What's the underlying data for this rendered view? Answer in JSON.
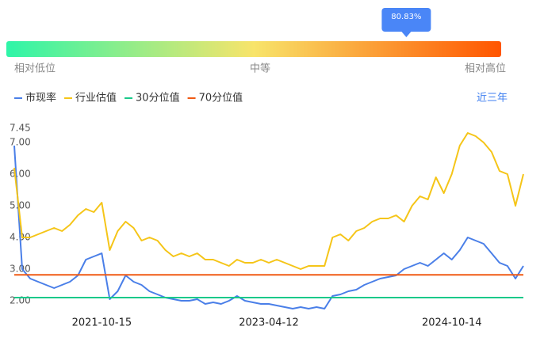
{
  "gauge": {
    "value": 80.83,
    "value_label": "80.83%",
    "low_label": "相对低位",
    "mid_label": "中等",
    "high_label": "相对高位"
  },
  "range_option": "近三年",
  "chart_data": {
    "type": "line",
    "categories": [
      null,
      null,
      null,
      null,
      null,
      null,
      null,
      null,
      null,
      null,
      null,
      "2021-10-15",
      null,
      null,
      null,
      null,
      null,
      null,
      null,
      null,
      null,
      null,
      null,
      null,
      null,
      null,
      null,
      null,
      null,
      null,
      null,
      null,
      "2023-04-12",
      null,
      null,
      null,
      null,
      null,
      null,
      null,
      null,
      null,
      null,
      null,
      null,
      null,
      null,
      null,
      null,
      null,
      null,
      null,
      null,
      null,
      null,
      "2024-10-14",
      null,
      null,
      null,
      null,
      null,
      null,
      null,
      null,
      null
    ],
    "series": [
      {
        "name": "市现率",
        "color": "#4a7fe8",
        "values": [
          6.9,
          3.0,
          2.7,
          2.6,
          2.5,
          2.4,
          2.5,
          2.6,
          2.8,
          3.3,
          3.4,
          3.5,
          2.05,
          2.3,
          2.8,
          2.6,
          2.5,
          2.3,
          2.2,
          2.1,
          2.05,
          2.0,
          2.0,
          2.05,
          1.9,
          1.95,
          1.9,
          2.0,
          2.15,
          2.0,
          1.95,
          1.9,
          1.9,
          1.85,
          1.8,
          1.75,
          1.8,
          1.75,
          1.8,
          1.75,
          2.15,
          2.2,
          2.3,
          2.35,
          2.5,
          2.6,
          2.7,
          2.75,
          2.8,
          3.0,
          3.1,
          3.2,
          3.1,
          3.3,
          3.5,
          3.3,
          3.6,
          4.0,
          3.9,
          3.8,
          3.5,
          3.2,
          3.1,
          2.7,
          3.1
        ]
      },
      {
        "name": "行业估值",
        "color": "#f5c518",
        "values": [
          6.2,
          4.0,
          4.0,
          4.1,
          4.2,
          4.3,
          4.2,
          4.4,
          4.7,
          4.9,
          4.8,
          5.1,
          3.6,
          4.2,
          4.5,
          4.3,
          3.9,
          4.0,
          3.9,
          3.6,
          3.4,
          3.5,
          3.4,
          3.5,
          3.3,
          3.3,
          3.2,
          3.1,
          3.3,
          3.2,
          3.2,
          3.3,
          3.2,
          3.3,
          3.2,
          3.1,
          3.0,
          3.1,
          3.1,
          3.1,
          4.0,
          4.1,
          3.9,
          4.2,
          4.3,
          4.5,
          4.6,
          4.6,
          4.7,
          4.5,
          5.0,
          5.3,
          5.2,
          5.9,
          5.4,
          6.0,
          6.9,
          7.3,
          7.2,
          7.0,
          6.7,
          6.1,
          6.0,
          5.0,
          6.0
        ]
      },
      {
        "name": "30分位值",
        "color": "#19c98a",
        "value": 2.1
      },
      {
        "name": "70分位值",
        "color": "#f05a14",
        "value": 2.82
      }
    ],
    "ylim": [
      1.7,
      7.45
    ],
    "yticks": [
      {
        "value": 2,
        "label": "2.00"
      },
      {
        "value": 3,
        "label": "3.00"
      },
      {
        "value": 4,
        "label": "4.00"
      },
      {
        "value": 5,
        "label": "5.00"
      },
      {
        "value": 6,
        "label": "6.00"
      },
      {
        "value": 7,
        "label": "7.00"
      },
      7.45
    ]
  }
}
